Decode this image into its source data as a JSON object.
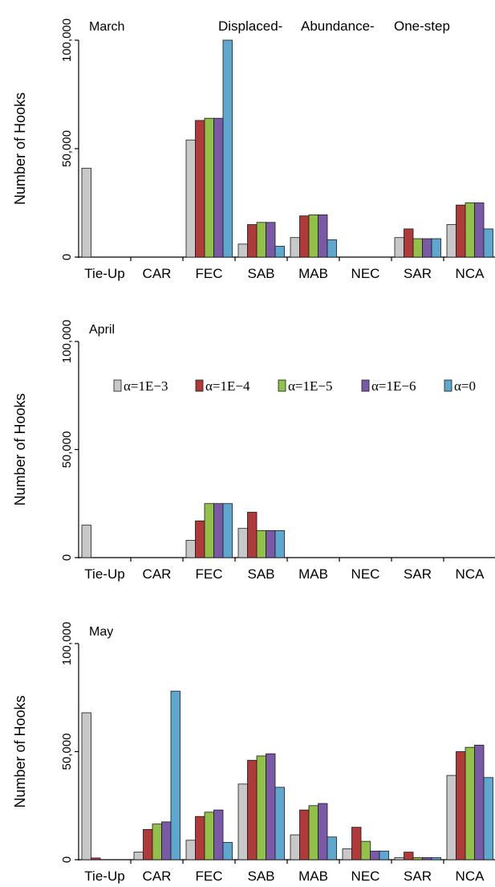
{
  "header": {
    "labels": [
      "Displaced-",
      "Abundance-",
      "One-step"
    ]
  },
  "legend": {
    "entries": [
      "α=1E−3",
      "α=1E−4",
      "α=1E−5",
      "α=1E−6",
      "α=0"
    ]
  },
  "colors": {
    "series": [
      "#c8c8c8",
      "#b03a3a",
      "#92c14a",
      "#7a5aa6",
      "#5ea8cf"
    ]
  },
  "chart_data": [
    {
      "type": "bar",
      "title": "March",
      "ylabel": "Number of Hooks",
      "ylim": [
        0,
        100000
      ],
      "yticks": [
        0,
        50000,
        100000
      ],
      "ytick_labels": [
        "0",
        "50,000",
        "100,000"
      ],
      "categories": [
        "Tie-Up",
        "CAR",
        "FEC",
        "SAB",
        "MAB",
        "NEC",
        "SAR",
        "NCA"
      ],
      "series": [
        {
          "name": "α=1E−3",
          "values": [
            41000,
            0,
            54000,
            6000,
            9000,
            0,
            9000,
            15000
          ]
        },
        {
          "name": "α=1E−4",
          "values": [
            0,
            0,
            63000,
            15000,
            19000,
            0,
            13000,
            24000
          ]
        },
        {
          "name": "α=1E−5",
          "values": [
            0,
            0,
            64000,
            16000,
            19500,
            0,
            8500,
            25000
          ]
        },
        {
          "name": "α=1E−6",
          "values": [
            0,
            0,
            64000,
            16000,
            19500,
            0,
            8500,
            25000
          ]
        },
        {
          "name": "α=0",
          "values": [
            0,
            0,
            100000,
            5000,
            8000,
            0,
            8500,
            13000
          ]
        }
      ]
    },
    {
      "type": "bar",
      "title": "April",
      "ylabel": "Number of Hooks",
      "ylim": [
        0,
        100000
      ],
      "yticks": [
        0,
        50000,
        100000
      ],
      "ytick_labels": [
        "0",
        "50,000",
        "100,000"
      ],
      "categories": [
        "Tie-Up",
        "CAR",
        "FEC",
        "SAB",
        "MAB",
        "NEC",
        "SAR",
        "NCA"
      ],
      "series": [
        {
          "name": "α=1E−3",
          "values": [
            15000,
            0,
            8000,
            13500,
            0,
            0,
            0,
            0
          ]
        },
        {
          "name": "α=1E−4",
          "values": [
            0,
            0,
            17000,
            21000,
            0,
            0,
            0,
            0
          ]
        },
        {
          "name": "α=1E−5",
          "values": [
            0,
            0,
            25000,
            12500,
            0,
            0,
            0,
            0
          ]
        },
        {
          "name": "α=1E−6",
          "values": [
            0,
            0,
            25000,
            12500,
            0,
            0,
            0,
            0
          ]
        },
        {
          "name": "α=0",
          "values": [
            0,
            0,
            25000,
            12500,
            0,
            0,
            0,
            0
          ]
        }
      ]
    },
    {
      "type": "bar",
      "title": "May",
      "ylabel": "Number of Hooks",
      "ylim": [
        0,
        100000
      ],
      "yticks": [
        0,
        50000,
        100000
      ],
      "ytick_labels": [
        "0",
        "50,000",
        "100,000"
      ],
      "categories": [
        "Tie-Up",
        "CAR",
        "FEC",
        "SAB",
        "MAB",
        "NEC",
        "SAR",
        "NCA"
      ],
      "series": [
        {
          "name": "α=1E−3",
          "values": [
            68000,
            3500,
            9000,
            35000,
            11500,
            5000,
            1000,
            39000
          ]
        },
        {
          "name": "α=1E−4",
          "values": [
            800,
            14000,
            20000,
            46000,
            23000,
            15000,
            3500,
            50000
          ]
        },
        {
          "name": "α=1E−5",
          "values": [
            0,
            16500,
            22000,
            48000,
            25000,
            8500,
            1000,
            52000
          ]
        },
        {
          "name": "α=1E−6",
          "values": [
            0,
            17500,
            23000,
            49000,
            26000,
            4000,
            1000,
            53000
          ]
        },
        {
          "name": "α=0",
          "values": [
            0,
            78000,
            8000,
            33500,
            10500,
            4000,
            1000,
            38000
          ]
        }
      ]
    }
  ]
}
